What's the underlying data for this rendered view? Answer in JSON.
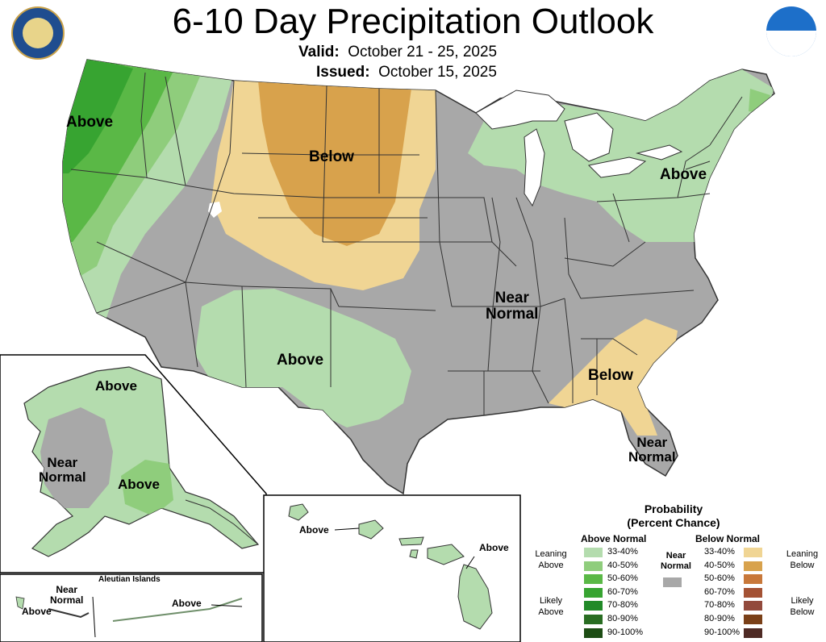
{
  "title": "6-10 Day Precipitation Outlook",
  "valid_label": "Valid:",
  "valid_dates": "October 21 - 25, 2025",
  "issued_label": "Issued:",
  "issued_date": "October 15, 2025",
  "logos": {
    "left": "department-of-commerce-seal",
    "right": "noaa-logo"
  },
  "map_labels": {
    "northwest": "Above",
    "northern_plains": "Below",
    "northeast": "Above",
    "central": "Near\nNormal",
    "southwest": "Above",
    "southeast": "Below",
    "florida": "Near\nNormal",
    "alaska_north": "Above",
    "alaska_west": "Near\nNormal",
    "alaska_south": "Above",
    "hawaii_west": "Above",
    "hawaii_east": "Above",
    "aleutian_title": "Aleutian Islands",
    "aleutian_near": "Near\nNormal",
    "aleutian_above_left": "Above",
    "aleutian_above_right": "Above"
  },
  "legend": {
    "title": "Probability\n(Percent Chance)",
    "above_header": "Above Normal",
    "below_header": "Below Normal",
    "near_label": "Near\nNormal",
    "leaning_above": "Leaning\nAbove",
    "likely_above": "Likely\nAbove",
    "leaning_below": "Leaning\nBelow",
    "likely_below": "Likely\nBelow",
    "above": [
      {
        "range": "33-40%",
        "color": "#b4dcae"
      },
      {
        "range": "40-50%",
        "color": "#8fcd7c"
      },
      {
        "range": "50-60%",
        "color": "#5ab846"
      },
      {
        "range": "60-70%",
        "color": "#37a431"
      },
      {
        "range": "70-80%",
        "color": "#218a28"
      },
      {
        "range": "80-90%",
        "color": "#296d22"
      },
      {
        "range": "90-100%",
        "color": "#1d4d14"
      }
    ],
    "below": [
      {
        "range": "33-40%",
        "color": "#f0d594"
      },
      {
        "range": "40-50%",
        "color": "#d8a24c"
      },
      {
        "range": "50-60%",
        "color": "#c8783a"
      },
      {
        "range": "60-70%",
        "color": "#a45234"
      },
      {
        "range": "70-80%",
        "color": "#924a3c"
      },
      {
        "range": "80-90%",
        "color": "#7a4018"
      },
      {
        "range": "90-100%",
        "color": "#4e2a24"
      }
    ],
    "near_color": "#a8a8a8"
  },
  "colors": {
    "near": "#a8a8a8",
    "state_line": "#333333",
    "above_1": "#b4dcae",
    "above_2": "#8fcd7c",
    "above_3": "#5ab846",
    "above_4": "#37a431",
    "below_1": "#f0d594",
    "below_2": "#d8a24c"
  }
}
